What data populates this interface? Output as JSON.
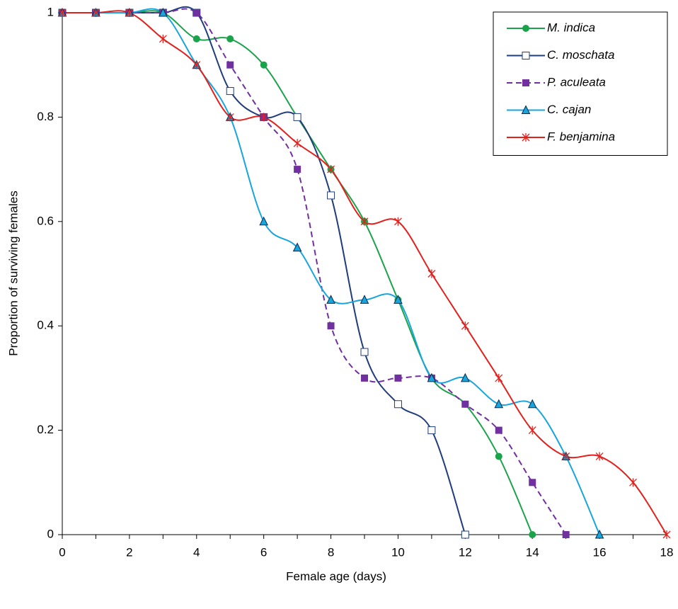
{
  "chart_data": {
    "type": "line",
    "xlabel": "Female age (days)",
    "ylabel": "Proportion of surviving females",
    "x": [
      0,
      1,
      2,
      3,
      4,
      5,
      6,
      7,
      8,
      9,
      10,
      11,
      12,
      13,
      14,
      15,
      16,
      17,
      18
    ],
    "xlim": [
      0,
      18
    ],
    "xticks": [
      0,
      2,
      4,
      6,
      8,
      10,
      12,
      14,
      16,
      18
    ],
    "xminorticks": [
      1,
      3,
      5,
      7,
      9,
      11,
      13,
      15,
      17
    ],
    "ylim": [
      0,
      1
    ],
    "yticks": [
      0,
      0.2,
      0.4,
      0.6,
      0.8,
      1
    ],
    "smooth": true,
    "legend": "upper right",
    "series": [
      {
        "name": "M. indica",
        "color": "#1ba34b",
        "marker": "circle",
        "dash": false,
        "values": [
          1,
          1,
          1,
          1,
          0.95,
          0.95,
          0.9,
          0.8,
          0.7,
          0.6,
          0.45,
          0.3,
          0.25,
          0.15,
          0,
          null,
          null,
          null,
          null
        ]
      },
      {
        "name": "C. moschata",
        "color": "#1f3d7a",
        "marker": "open-square",
        "dash": false,
        "values": [
          1,
          1,
          1,
          1,
          1,
          0.85,
          0.8,
          0.8,
          0.65,
          0.35,
          0.25,
          0.2,
          0,
          null,
          null,
          null,
          null,
          null,
          null
        ]
      },
      {
        "name": "P. aculeata",
        "color": "#7030a0",
        "marker": "square",
        "dash": true,
        "values": [
          1,
          1,
          1,
          1,
          1,
          0.9,
          0.8,
          0.7,
          0.4,
          0.3,
          0.3,
          0.3,
          0.25,
          0.2,
          0.1,
          0,
          null,
          null,
          null
        ]
      },
      {
        "name": "C. cajan",
        "color": "#17a5dd",
        "marker": "triangle",
        "dash": false,
        "values": [
          1,
          1,
          1,
          1,
          0.9,
          0.8,
          0.6,
          0.55,
          0.45,
          0.45,
          0.45,
          0.3,
          0.3,
          0.25,
          0.25,
          0.15,
          0,
          null,
          null
        ]
      },
      {
        "name": "F. benjamina",
        "color": "#e3201c",
        "marker": "star",
        "dash": false,
        "values": [
          1,
          1,
          1,
          0.95,
          0.9,
          0.8,
          0.8,
          0.75,
          0.7,
          0.6,
          0.6,
          0.5,
          0.4,
          0.3,
          0.2,
          0.15,
          0.15,
          0.1,
          0
        ]
      }
    ]
  }
}
